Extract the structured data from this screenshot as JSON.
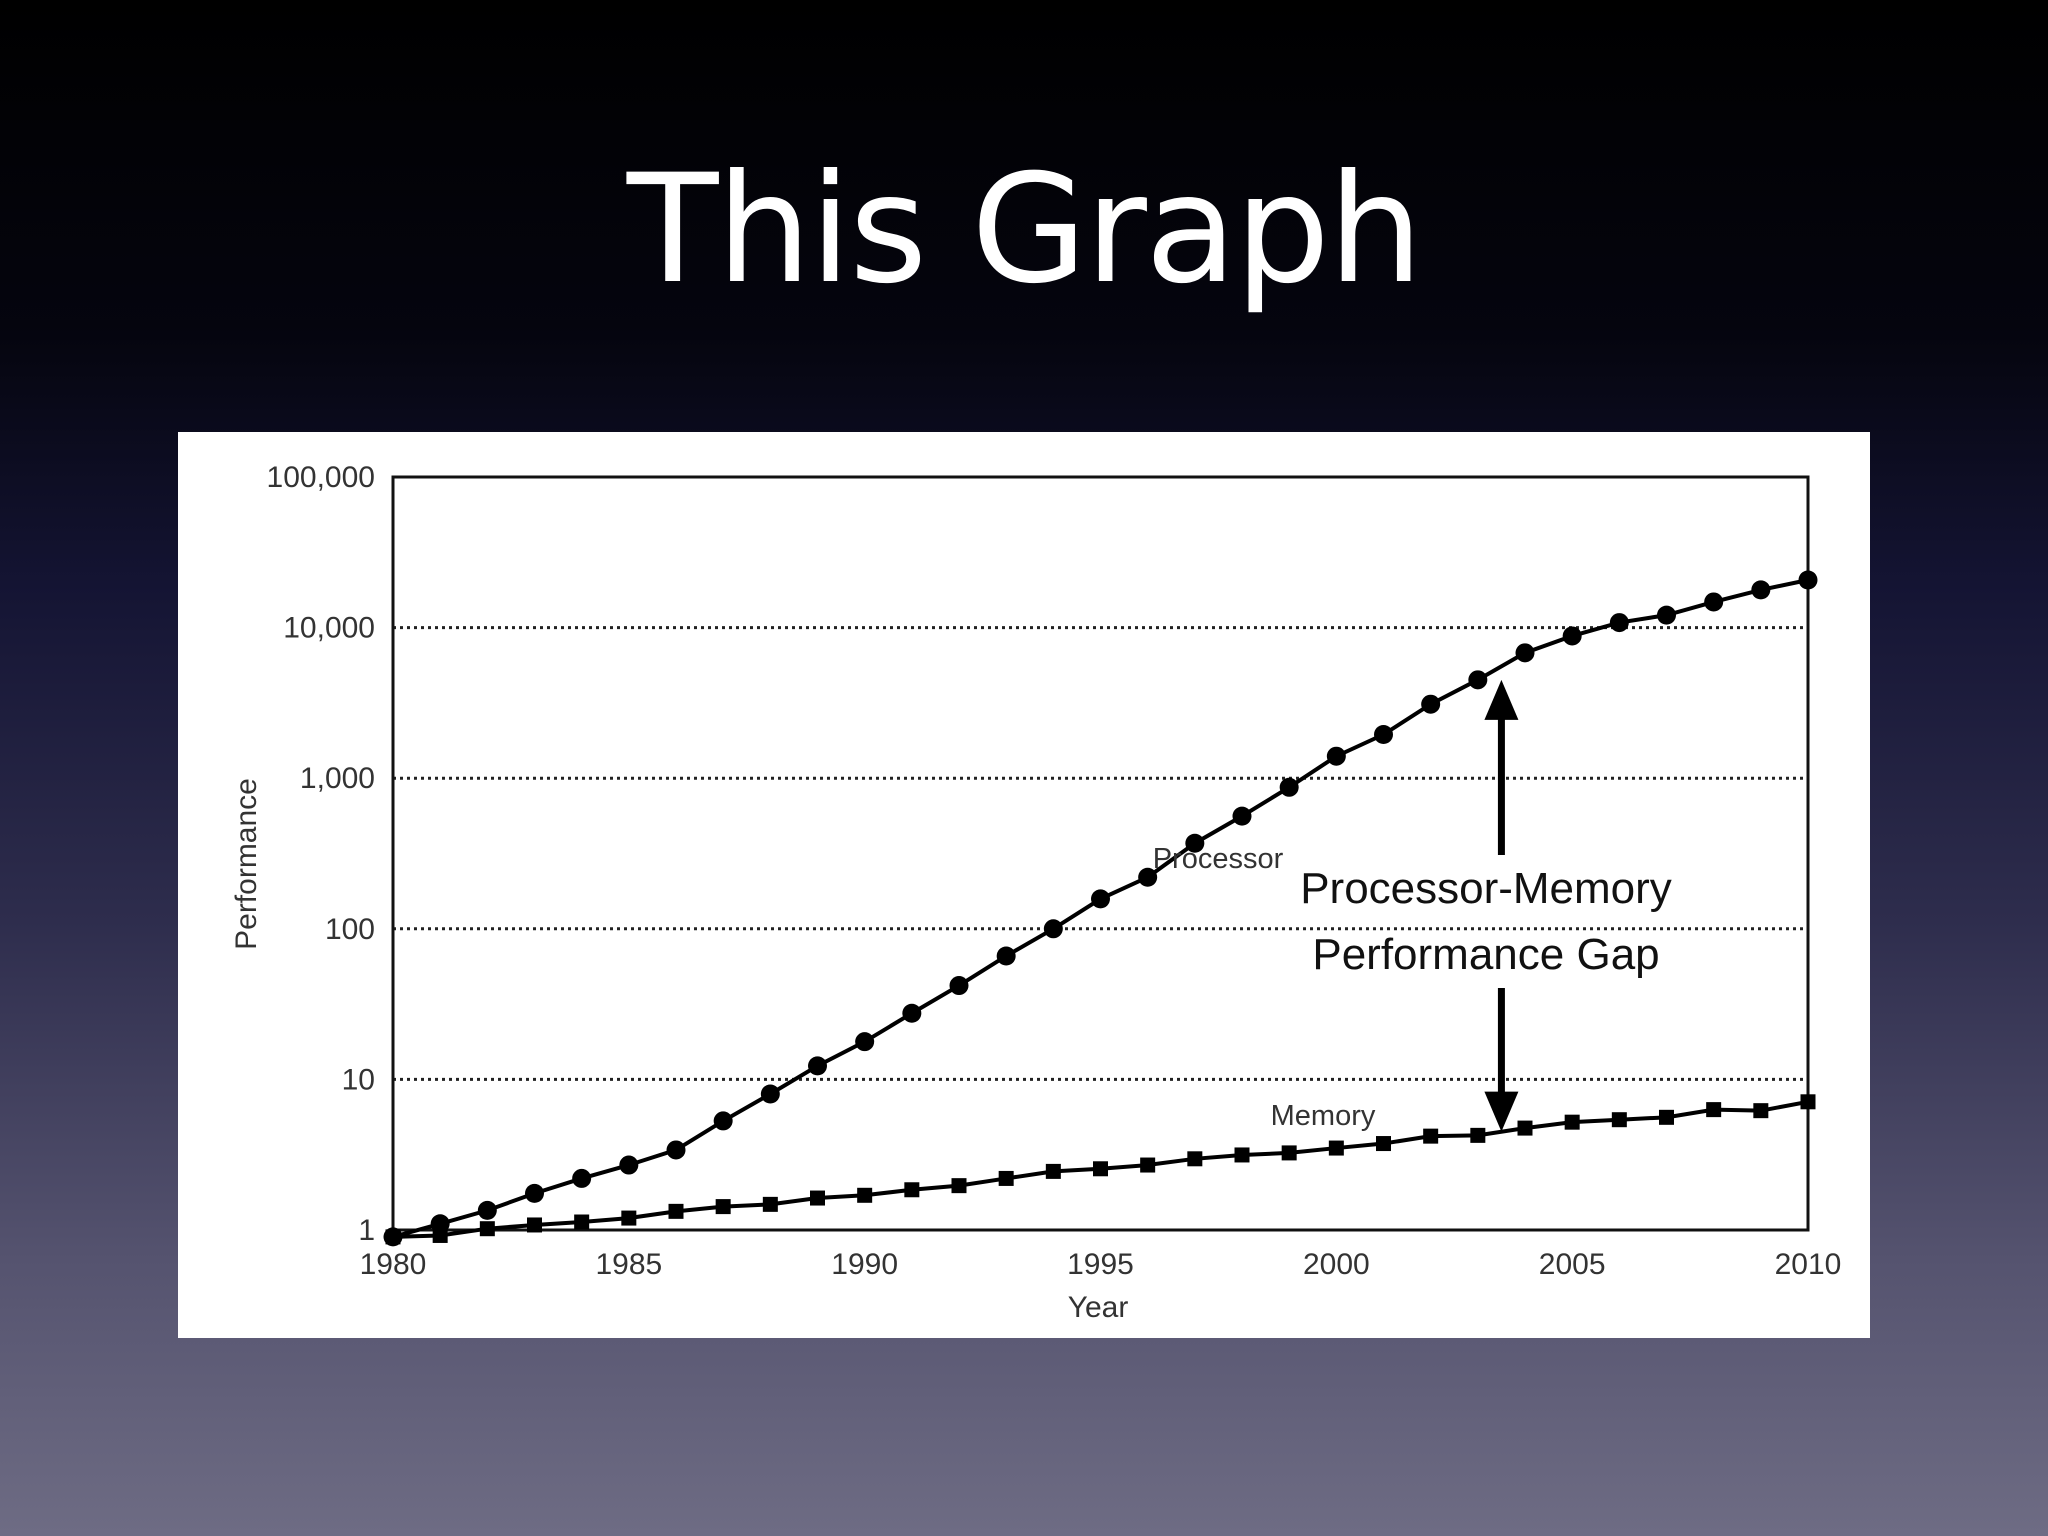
{
  "slide": {
    "title": "This Graph"
  },
  "chart_data": {
    "type": "line",
    "title": "",
    "xlabel": "Year",
    "ylabel": "Performance",
    "yscale": "log",
    "xlim": [
      1980,
      2010
    ],
    "ylim": [
      1,
      100000
    ],
    "x_ticks": [
      "1980",
      "1985",
      "1990",
      "1995",
      "2000",
      "2005",
      "2010"
    ],
    "y_ticks": [
      "1",
      "10",
      "100",
      "1,000",
      "10,000",
      "100,000"
    ],
    "grid": "horizontal dotted",
    "x": [
      1980,
      1981,
      1982,
      1983,
      1984,
      1985,
      1986,
      1987,
      1988,
      1989,
      1990,
      1991,
      1992,
      1993,
      1994,
      1995,
      1996,
      1997,
      1998,
      1999,
      2000,
      2001,
      2002,
      2003,
      2004,
      2005,
      2006,
      2007,
      2008,
      2009,
      2010
    ],
    "series": [
      {
        "name": "Processor",
        "marker": "circle",
        "values": [
          0.9,
          1.1,
          1.35,
          1.75,
          2.2,
          2.7,
          3.4,
          5.3,
          8.0,
          12.3,
          17.8,
          27.5,
          42,
          66,
          100,
          158,
          220,
          370,
          560,
          870,
          1400,
          1950,
          3100,
          4500,
          6800,
          8800,
          10800,
          12100,
          14800,
          17800,
          20700
        ]
      },
      {
        "name": "Memory",
        "marker": "square",
        "values": [
          0.9,
          0.92,
          1.02,
          1.08,
          1.13,
          1.2,
          1.33,
          1.43,
          1.48,
          1.63,
          1.7,
          1.85,
          1.97,
          2.2,
          2.45,
          2.55,
          2.7,
          2.97,
          3.15,
          3.25,
          3.5,
          3.75,
          4.2,
          4.25,
          4.75,
          5.2,
          5.4,
          5.6,
          6.3,
          6.2,
          7.1
        ]
      }
    ],
    "annotations": [
      {
        "text": [
          "Processor-Memory",
          "Performance Gap"
        ],
        "arrow_x": 2003.5,
        "arrow_from": 4.5,
        "arrow_to": 4500
      }
    ]
  }
}
